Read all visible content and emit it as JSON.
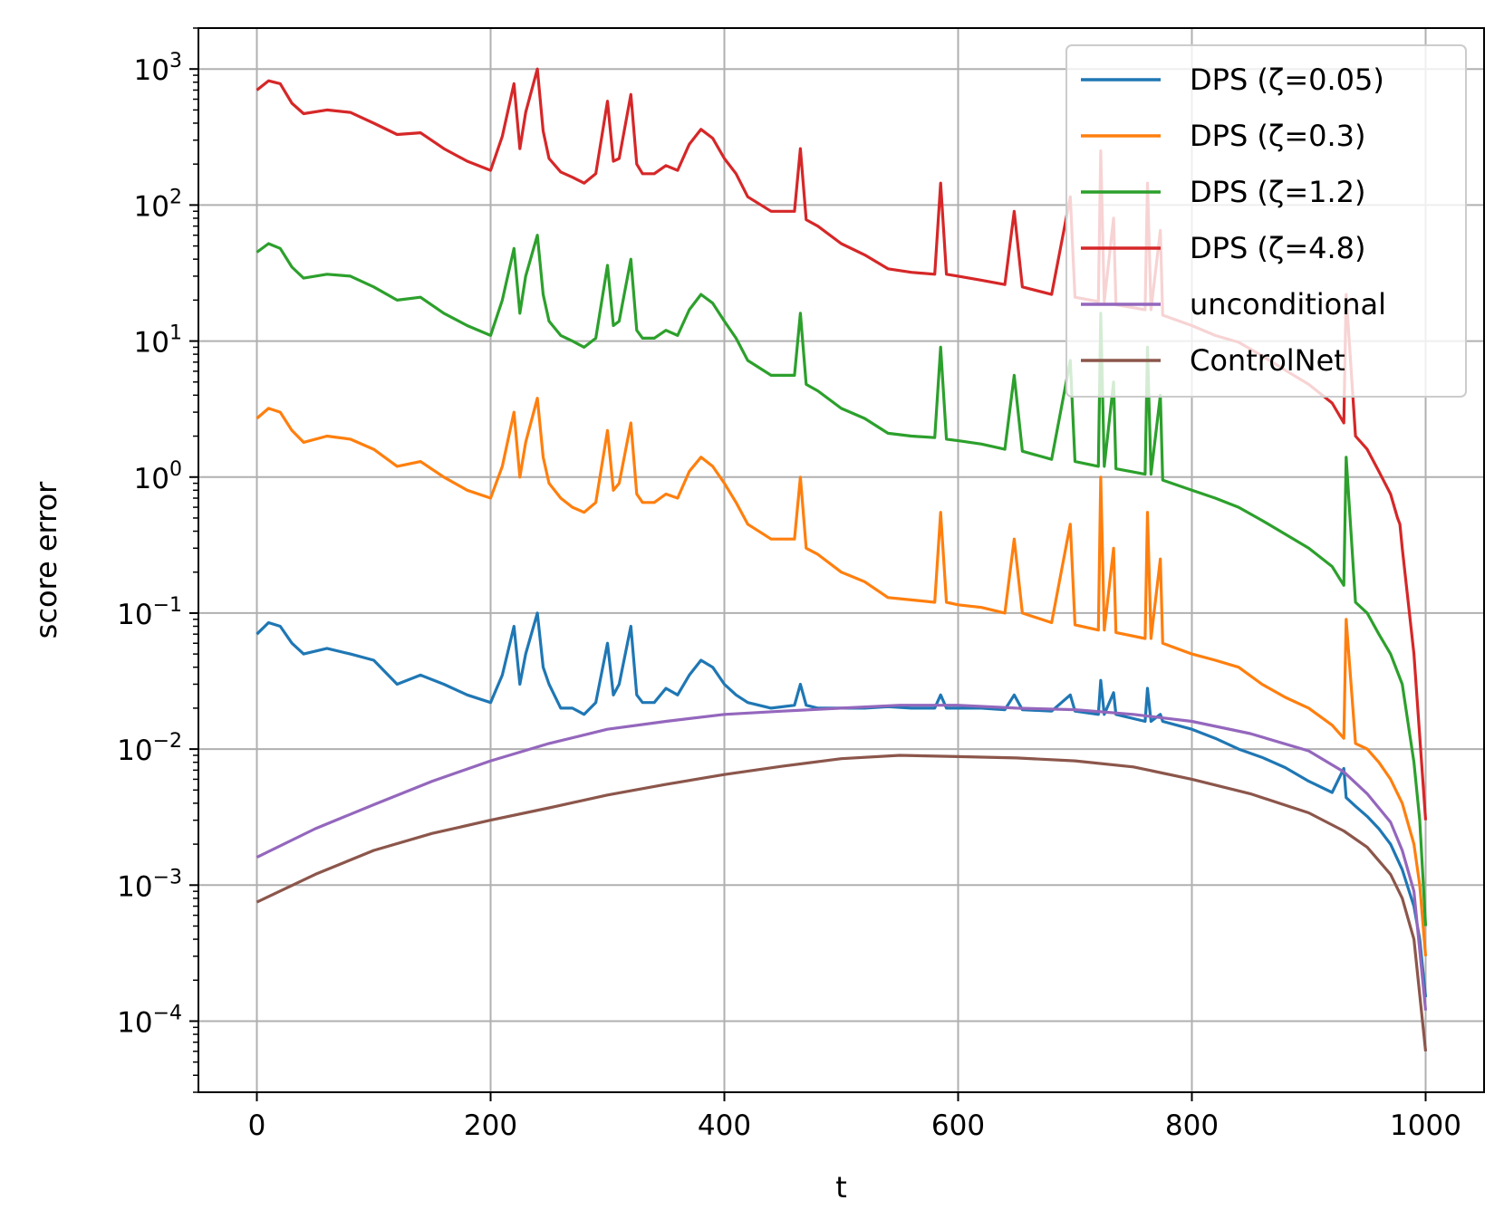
{
  "chart_data": {
    "type": "line",
    "title": "",
    "xlabel": "t",
    "ylabel": "score error",
    "yscale": "log",
    "xlim": [
      -50,
      1050
    ],
    "ylim": [
      3e-05,
      2000
    ],
    "grid": true,
    "legend_position": "top-right",
    "x_ticks": [
      0,
      200,
      400,
      600,
      800,
      1000
    ],
    "x_tick_labels": [
      "0",
      "200",
      "400",
      "600",
      "800",
      "1000"
    ],
    "y_tick_exponents": [
      3,
      2,
      1,
      0,
      -1,
      -2,
      -3,
      -4
    ],
    "y_tick_base": "10",
    "series": [
      {
        "name": "DPS (ζ=0.05)",
        "color": "#1f77b4",
        "x": [
          0,
          10,
          20,
          30,
          40,
          60,
          80,
          100,
          120,
          140,
          160,
          180,
          200,
          210,
          220,
          225,
          230,
          240,
          245,
          250,
          260,
          270,
          280,
          290,
          300,
          305,
          310,
          320,
          325,
          330,
          340,
          350,
          360,
          370,
          380,
          390,
          400,
          410,
          420,
          440,
          460,
          465,
          470,
          480,
          500,
          520,
          540,
          560,
          580,
          585,
          590,
          600,
          620,
          640,
          648,
          655,
          680,
          696,
          700,
          720,
          722,
          725,
          733,
          735,
          760,
          762,
          765,
          773,
          775,
          800,
          820,
          840,
          860,
          880,
          900,
          920,
          930,
          932,
          940,
          950,
          960,
          970,
          980,
          990,
          995,
          1000
        ],
        "values": [
          0.07,
          0.085,
          0.08,
          0.06,
          0.05,
          0.055,
          0.05,
          0.045,
          0.03,
          0.035,
          0.03,
          0.025,
          0.022,
          0.035,
          0.08,
          0.03,
          0.05,
          0.1,
          0.04,
          0.03,
          0.02,
          0.02,
          0.018,
          0.022,
          0.06,
          0.025,
          0.03,
          0.08,
          0.025,
          0.022,
          0.022,
          0.028,
          0.025,
          0.035,
          0.045,
          0.04,
          0.03,
          0.025,
          0.022,
          0.02,
          0.021,
          0.03,
          0.021,
          0.02,
          0.02,
          0.02,
          0.0205,
          0.02,
          0.02,
          0.025,
          0.02,
          0.02,
          0.02,
          0.0195,
          0.025,
          0.0195,
          0.019,
          0.025,
          0.019,
          0.018,
          0.032,
          0.018,
          0.026,
          0.018,
          0.016,
          0.028,
          0.016,
          0.018,
          0.016,
          0.014,
          0.012,
          0.01,
          0.0087,
          0.0073,
          0.0058,
          0.0048,
          0.0072,
          0.0044,
          0.0038,
          0.0032,
          0.0026,
          0.002,
          0.0013,
          0.0007,
          0.0004,
          0.00015
        ]
      },
      {
        "name": "DPS (ζ=0.3)",
        "color": "#ff7f0e",
        "x": [
          0,
          10,
          20,
          30,
          40,
          60,
          80,
          100,
          120,
          140,
          160,
          180,
          200,
          210,
          220,
          225,
          230,
          240,
          245,
          250,
          260,
          270,
          280,
          290,
          300,
          305,
          310,
          320,
          325,
          330,
          340,
          350,
          360,
          370,
          380,
          390,
          400,
          410,
          420,
          440,
          460,
          465,
          470,
          480,
          500,
          520,
          540,
          560,
          580,
          585,
          590,
          600,
          620,
          640,
          648,
          655,
          680,
          696,
          700,
          720,
          722,
          725,
          733,
          735,
          760,
          762,
          765,
          773,
          775,
          800,
          820,
          840,
          860,
          880,
          900,
          920,
          930,
          932,
          940,
          950,
          960,
          970,
          980,
          990,
          995,
          1000
        ],
        "values": [
          2.7,
          3.2,
          3.0,
          2.2,
          1.8,
          2.0,
          1.9,
          1.6,
          1.2,
          1.3,
          1.0,
          0.8,
          0.7,
          1.2,
          3.0,
          1.0,
          1.8,
          3.8,
          1.4,
          0.9,
          0.7,
          0.6,
          0.55,
          0.65,
          2.2,
          0.8,
          0.9,
          2.5,
          0.75,
          0.65,
          0.65,
          0.75,
          0.7,
          1.1,
          1.4,
          1.2,
          0.9,
          0.65,
          0.45,
          0.35,
          0.35,
          1.0,
          0.3,
          0.27,
          0.2,
          0.17,
          0.13,
          0.125,
          0.12,
          0.55,
          0.12,
          0.115,
          0.11,
          0.1,
          0.35,
          0.1,
          0.085,
          0.45,
          0.082,
          0.075,
          1.0,
          0.075,
          0.3,
          0.072,
          0.065,
          0.55,
          0.065,
          0.25,
          0.06,
          0.05,
          0.045,
          0.04,
          0.03,
          0.024,
          0.02,
          0.015,
          0.012,
          0.09,
          0.011,
          0.01,
          0.008,
          0.006,
          0.004,
          0.002,
          0.001,
          0.0003
        ]
      },
      {
        "name": "DPS (ζ=1.2)",
        "color": "#2ca02c",
        "x": [
          0,
          10,
          20,
          30,
          40,
          60,
          80,
          100,
          120,
          140,
          160,
          180,
          200,
          210,
          220,
          225,
          230,
          240,
          245,
          250,
          260,
          270,
          280,
          290,
          300,
          305,
          310,
          320,
          325,
          330,
          340,
          350,
          360,
          370,
          380,
          390,
          400,
          410,
          420,
          440,
          460,
          465,
          470,
          480,
          500,
          520,
          540,
          560,
          580,
          585,
          590,
          600,
          620,
          640,
          648,
          655,
          680,
          696,
          700,
          720,
          722,
          725,
          733,
          735,
          760,
          762,
          765,
          773,
          775,
          800,
          820,
          840,
          860,
          880,
          900,
          920,
          930,
          932,
          940,
          950,
          960,
          970,
          980,
          990,
          995,
          1000
        ],
        "values": [
          45,
          52,
          48,
          35,
          29,
          31,
          30,
          25,
          20,
          21,
          16,
          13,
          11,
          20,
          48,
          16,
          30,
          60,
          22,
          14,
          11,
          10,
          9,
          10.5,
          36,
          13,
          14,
          40,
          12,
          10.5,
          10.5,
          12,
          11,
          17,
          22,
          19,
          14,
          10.5,
          7.2,
          5.6,
          5.6,
          16,
          4.8,
          4.3,
          3.2,
          2.7,
          2.1,
          2.0,
          1.95,
          9,
          1.9,
          1.85,
          1.75,
          1.6,
          5.6,
          1.55,
          1.35,
          7.2,
          1.3,
          1.2,
          16,
          1.2,
          5,
          1.15,
          1.05,
          9,
          1.05,
          4,
          0.95,
          0.8,
          0.7,
          0.6,
          0.48,
          0.38,
          0.3,
          0.22,
          0.16,
          1.4,
          0.12,
          0.1,
          0.07,
          0.05,
          0.03,
          0.008,
          0.003,
          0.0005
        ]
      },
      {
        "name": "DPS (ζ=4.8)",
        "color": "#d62728",
        "x": [
          0,
          10,
          20,
          30,
          40,
          60,
          80,
          100,
          120,
          140,
          160,
          180,
          200,
          210,
          220,
          225,
          230,
          240,
          245,
          250,
          260,
          270,
          280,
          290,
          300,
          305,
          310,
          320,
          325,
          330,
          340,
          350,
          360,
          370,
          380,
          390,
          400,
          410,
          420,
          440,
          460,
          465,
          470,
          480,
          500,
          520,
          540,
          560,
          580,
          585,
          590,
          600,
          620,
          640,
          648,
          655,
          680,
          696,
          700,
          720,
          722,
          725,
          733,
          735,
          760,
          762,
          765,
          773,
          775,
          800,
          820,
          840,
          860,
          880,
          900,
          920,
          930,
          932,
          940,
          950,
          960,
          970,
          976,
          978,
          980,
          990,
          1000
        ],
        "values": [
          700,
          820,
          780,
          560,
          470,
          500,
          480,
          400,
          330,
          340,
          260,
          210,
          180,
          320,
          780,
          260,
          480,
          1000,
          350,
          220,
          175,
          160,
          145,
          170,
          580,
          210,
          220,
          650,
          200,
          170,
          170,
          195,
          180,
          280,
          360,
          310,
          220,
          170,
          115,
          90,
          90,
          260,
          78,
          70,
          52,
          43,
          34,
          32,
          31,
          145,
          31,
          30,
          28,
          26,
          90,
          25,
          22,
          115,
          21,
          19.5,
          250,
          19.5,
          80,
          18.5,
          17,
          145,
          17,
          65,
          15.5,
          13,
          11,
          9.8,
          7.8,
          6.1,
          4.8,
          3.5,
          2.5,
          22,
          2.0,
          1.6,
          1.1,
          0.75,
          0.5,
          0.45,
          0.3,
          0.05,
          0.003
        ]
      },
      {
        "name": "unconditional",
        "color": "#9467bd",
        "x": [
          0,
          50,
          100,
          150,
          200,
          250,
          300,
          350,
          400,
          450,
          500,
          550,
          600,
          650,
          700,
          750,
          800,
          850,
          900,
          930,
          950,
          970,
          980,
          990,
          1000
        ],
        "values": [
          0.0016,
          0.0026,
          0.0039,
          0.0058,
          0.0082,
          0.011,
          0.014,
          0.016,
          0.018,
          0.019,
          0.02,
          0.021,
          0.021,
          0.02,
          0.0195,
          0.018,
          0.016,
          0.013,
          0.0097,
          0.0068,
          0.0047,
          0.0029,
          0.0018,
          0.0009,
          0.00012
        ]
      },
      {
        "name": "ControlNet",
        "color": "#8c564b",
        "x": [
          0,
          50,
          100,
          150,
          200,
          250,
          300,
          350,
          400,
          450,
          500,
          550,
          600,
          650,
          700,
          750,
          800,
          850,
          900,
          930,
          950,
          970,
          980,
          990,
          1000
        ],
        "values": [
          0.00075,
          0.0012,
          0.0018,
          0.0024,
          0.003,
          0.0037,
          0.0046,
          0.0055,
          0.0065,
          0.0075,
          0.0085,
          0.009,
          0.0088,
          0.0086,
          0.0082,
          0.0074,
          0.006,
          0.0047,
          0.0034,
          0.0025,
          0.0019,
          0.0012,
          0.0008,
          0.0004,
          6e-05
        ]
      }
    ]
  }
}
